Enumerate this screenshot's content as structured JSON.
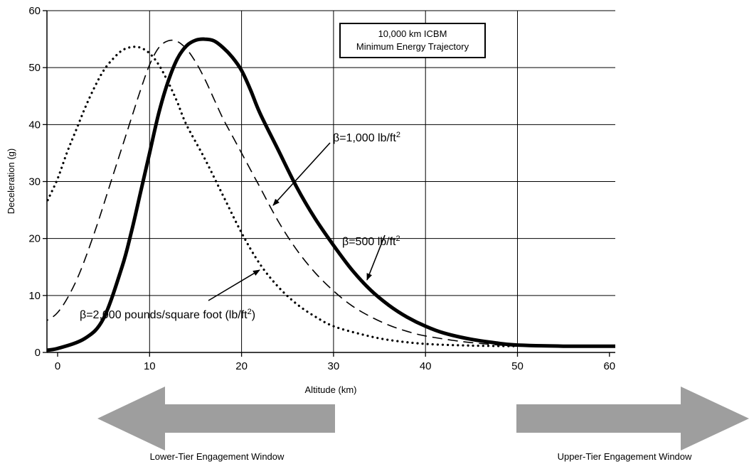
{
  "chart_data": {
    "type": "line",
    "xlabel": "Altitude (km)",
    "ylabel": "Deceleration (g)",
    "xlim": [
      0,
      60
    ],
    "ylim": [
      0,
      60
    ],
    "xticks": [
      "0",
      "10",
      "20",
      "30",
      "40",
      "50",
      "60"
    ],
    "yticks": [
      "0",
      "10",
      "20",
      "30",
      "40",
      "50",
      "60"
    ],
    "grid": true,
    "box_text": [
      "10,000 km ICBM",
      "Minimum Energy Trajectory"
    ],
    "series": [
      {
        "name": "β=500 lb/ft2",
        "label_main": "β=500 lb/ft",
        "label_sup": "2",
        "style": "solid",
        "x": [
          -2,
          0,
          3,
          5,
          7,
          8,
          9,
          10,
          11,
          12,
          13,
          14,
          15,
          16,
          17,
          18,
          19,
          20,
          21,
          22,
          24,
          26,
          28,
          30,
          32,
          34,
          36,
          38,
          40,
          42,
          45,
          48,
          50,
          55,
          60,
          62
        ],
        "y": [
          0.3,
          0.7,
          2.5,
          6,
          15,
          21,
          28,
          35,
          42,
          47.5,
          51.5,
          53.8,
          54.8,
          55,
          54.7,
          53.5,
          51.8,
          49.5,
          46,
          42,
          35.5,
          29,
          23.5,
          18.8,
          14.5,
          11,
          8.3,
          6.2,
          4.6,
          3.4,
          2.3,
          1.6,
          1.3,
          1.1,
          1.1,
          1.1
        ]
      },
      {
        "name": "β=1,000 lb/ft2",
        "label_main": "β=1,000 lb/ft",
        "label_sup": "2",
        "style": "dashed",
        "x": [
          -2,
          0,
          2,
          4,
          6,
          8,
          9,
          10,
          11,
          12,
          13,
          14,
          15,
          16,
          17,
          18,
          19,
          20,
          21,
          22,
          24,
          26,
          28,
          30,
          32,
          34,
          36,
          38,
          40,
          44,
          48,
          50,
          52
        ],
        "y": [
          5,
          7,
          12.5,
          21,
          31,
          41,
          46,
          50.5,
          53.5,
          54.7,
          54.6,
          53.3,
          51,
          48,
          44.5,
          41,
          38,
          35,
          32,
          29,
          23,
          18,
          14,
          10.8,
          8.2,
          6.3,
          4.8,
          3.7,
          2.9,
          1.9,
          1.3,
          1.2,
          1.2
        ]
      },
      {
        "name": "β=2,000 pounds/square foot (lb/ft2)",
        "label_main": "β=2,000 pounds/square foot (lb/ft",
        "label_sup": "2",
        "label_tail": ")",
        "style": "dotted",
        "x": [
          -2,
          -1,
          0,
          1,
          2,
          3,
          4,
          5,
          6,
          7,
          8,
          9,
          10,
          11,
          12,
          13,
          14,
          16,
          18,
          20,
          22,
          24,
          26,
          28,
          30,
          33,
          36,
          40,
          45,
          50
        ],
        "y": [
          23.5,
          27,
          30.5,
          35,
          39,
          43,
          46.5,
          49.5,
          51.5,
          53,
          53.6,
          53.5,
          52.5,
          50.5,
          47.5,
          44,
          40,
          34,
          27.5,
          21,
          15.5,
          11.5,
          8.5,
          6.3,
          4.6,
          3.2,
          2.2,
          1.5,
          1.2,
          1.1
        ]
      }
    ]
  },
  "windows": {
    "lower": "Lower-Tier Engagement Window",
    "upper": "Upper-Tier Engagement Window",
    "arrow_color": "#9e9e9e"
  }
}
